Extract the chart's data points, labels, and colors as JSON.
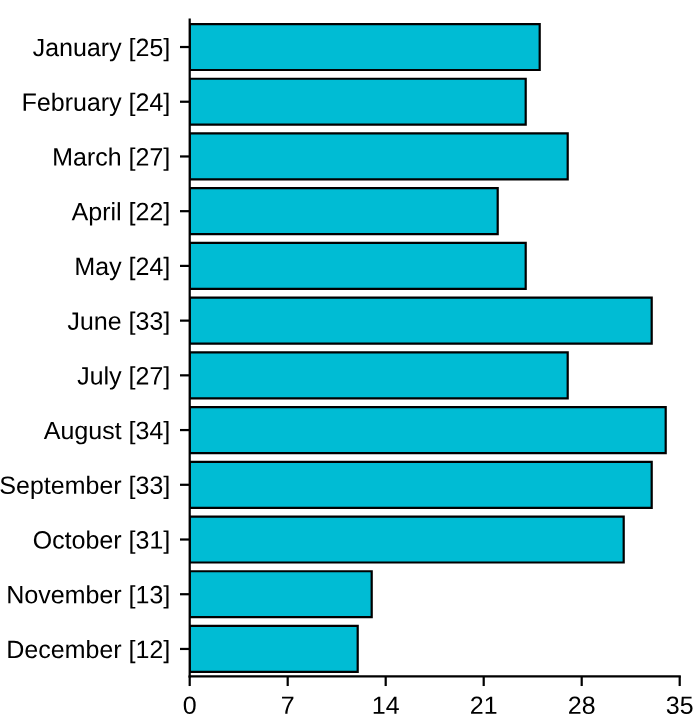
{
  "chart_data": {
    "type": "bar",
    "orientation": "horizontal",
    "categories": [
      "January [25]",
      "February [24]",
      "March [27]",
      "April [22]",
      "May [24]",
      "June [33]",
      "July [27]",
      "August [34]",
      "September [33]",
      "October [31]",
      "November [13]",
      "December [12]"
    ],
    "values": [
      25,
      24,
      27,
      22,
      24,
      33,
      27,
      34,
      33,
      31,
      13,
      12
    ],
    "color": "#00bcd4",
    "xlim": [
      0,
      35
    ],
    "xticks": [
      0,
      7,
      14,
      21,
      28,
      35
    ],
    "grid": false,
    "legend": false
  }
}
